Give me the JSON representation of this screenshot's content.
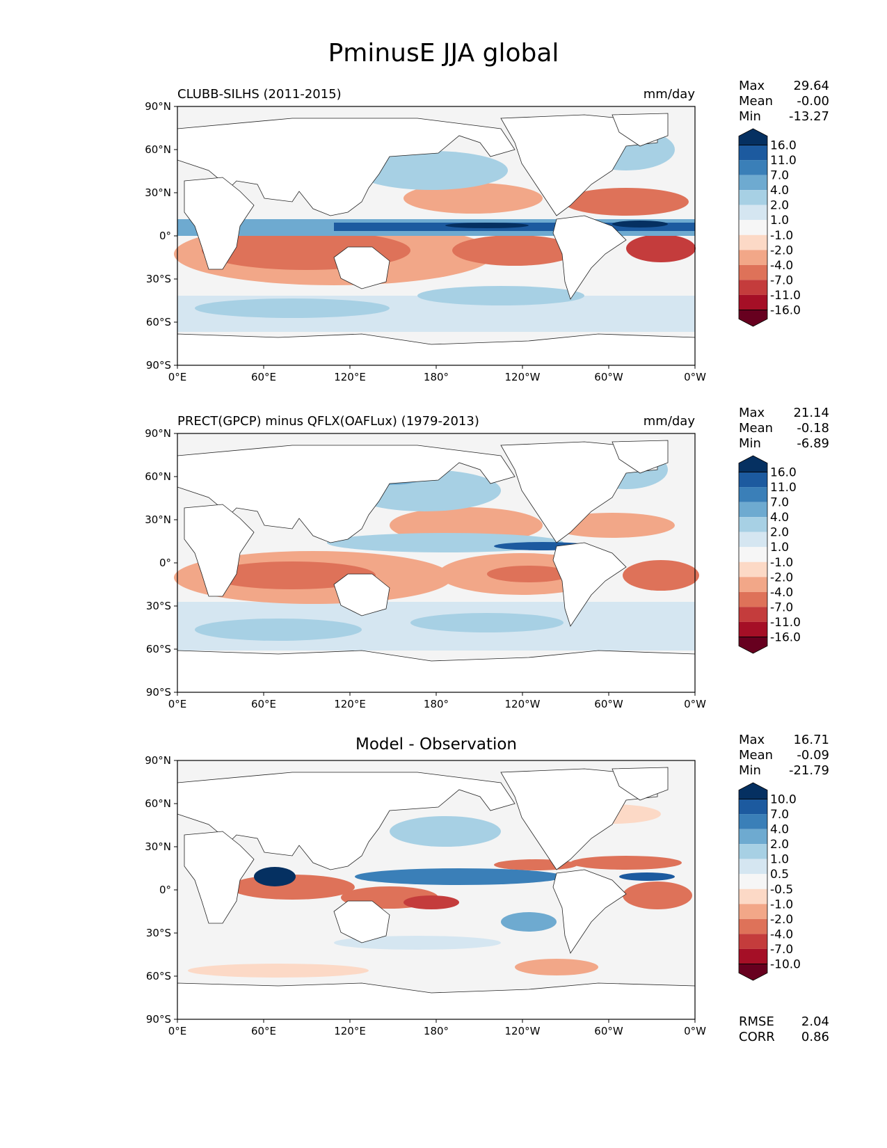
{
  "title": "PminusE JJA global",
  "axis": {
    "lon_ticks": [
      "0°E",
      "60°E",
      "120°E",
      "180°",
      "120°W",
      "60°W",
      "0°W"
    ],
    "lat_ticks": [
      "90°N",
      "60°N",
      "30°N",
      "0°",
      "30°S",
      "60°S",
      "90°S"
    ]
  },
  "colors": {
    "cmap": [
      "#67001f",
      "#a50f26",
      "#c43c3c",
      "#de7259",
      "#f2a788",
      "#fcd9c6",
      "#f6f6f6",
      "#d5e6f1",
      "#a7d0e4",
      "#6eaad0",
      "#3a7fb8",
      "#1c5a9f",
      "#053061"
    ],
    "land": "#ffffff",
    "ocean_neutral": "#f4f4f4"
  },
  "panels": [
    {
      "title_left": "CLUBB-SILHS (2011-2015)",
      "title_right": "mm/day",
      "stats": [
        {
          "label": "Max",
          "value": "29.64"
        },
        {
          "label": "Mean",
          "value": "-0.00"
        },
        {
          "label": "Min",
          "value": "-13.27"
        }
      ],
      "colorbar_labels": [
        "16.0",
        "11.0",
        "7.0",
        "4.0",
        "2.0",
        "1.0",
        "-1.0",
        "-2.0",
        "-4.0",
        "-7.0",
        "-11.0",
        "-16.0"
      ]
    },
    {
      "title_left": "PRECT(GPCP) minus QFLX(OAFLux) (1979-2013)",
      "title_right": "mm/day",
      "stats": [
        {
          "label": "Max",
          "value": "21.14"
        },
        {
          "label": "Mean",
          "value": "-0.18"
        },
        {
          "label": "Min",
          "value": "-6.89"
        }
      ],
      "colorbar_labels": [
        "16.0",
        "11.0",
        "7.0",
        "4.0",
        "2.0",
        "1.0",
        "-1.0",
        "-2.0",
        "-4.0",
        "-7.0",
        "-11.0",
        "-16.0"
      ]
    },
    {
      "title_center": "Model - Observation",
      "stats": [
        {
          "label": "Max",
          "value": "16.71"
        },
        {
          "label": "Mean",
          "value": "-0.09"
        },
        {
          "label": "Min",
          "value": "-21.79"
        }
      ],
      "colorbar_labels": [
        "10.0",
        "7.0",
        "4.0",
        "2.0",
        "1.0",
        "0.5",
        "-0.5",
        "-1.0",
        "-2.0",
        "-4.0",
        "-7.0",
        "-10.0"
      ],
      "metrics": [
        {
          "label": "RMSE",
          "value": "2.04"
        },
        {
          "label": "CORR",
          "value": "0.86"
        }
      ]
    }
  ]
}
